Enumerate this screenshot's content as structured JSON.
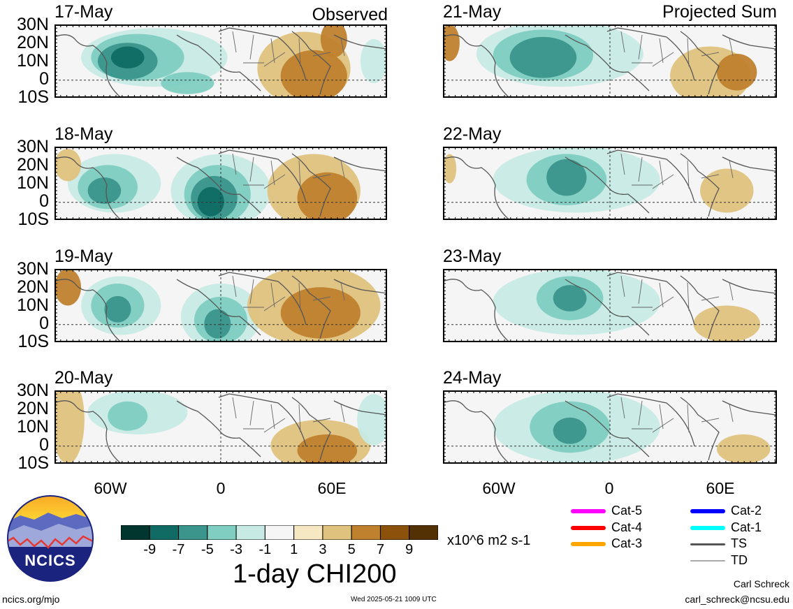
{
  "headers": {
    "left": "Observed",
    "right": "Projected Sum"
  },
  "lat_labels": [
    "30N",
    "20N",
    "10N",
    "0",
    "10S"
  ],
  "lon_labels": [
    "60W",
    "0",
    "60E"
  ],
  "panels": [
    {
      "date": "17-May"
    },
    {
      "date": "18-May"
    },
    {
      "date": "19-May"
    },
    {
      "date": "20-May"
    },
    {
      "date": "21-May"
    },
    {
      "date": "22-May"
    },
    {
      "date": "23-May"
    },
    {
      "date": "24-May"
    }
  ],
  "colorbar": {
    "colors": [
      "#01362e",
      "#0f6b64",
      "#3b958c",
      "#80cdc1",
      "#c7eae5",
      "#f5f5f5",
      "#f6e8c3",
      "#dfc27d",
      "#bf812d",
      "#8c510a",
      "#543005"
    ],
    "labels": [
      "-9",
      "-7",
      "-5",
      "-3",
      "-1",
      "1",
      "3",
      "5",
      "7",
      "9"
    ],
    "units": "x10^6 m2 s-1"
  },
  "title": "1-day CHI200",
  "tracks": [
    {
      "label": "Cat-5",
      "color": "#ff00ff"
    },
    {
      "label": "Cat-4",
      "color": "#ff0000"
    },
    {
      "label": "Cat-3",
      "color": "#ffa500"
    },
    {
      "label": "Cat-2",
      "color": "#0000ff"
    },
    {
      "label": "Cat-1",
      "color": "#00ffff"
    },
    {
      "label": "TS",
      "color": "#555555"
    },
    {
      "label": "TD",
      "color": "#aaaaaa"
    }
  ],
  "logo": {
    "text": "NCICS"
  },
  "footer": {
    "url": "ncics.org/mjo",
    "timestamp": "Wed 2025-05-21 1009 UTC",
    "author": "Carl Schreck",
    "email": "carl_schreck@ncsu.edu"
  }
}
